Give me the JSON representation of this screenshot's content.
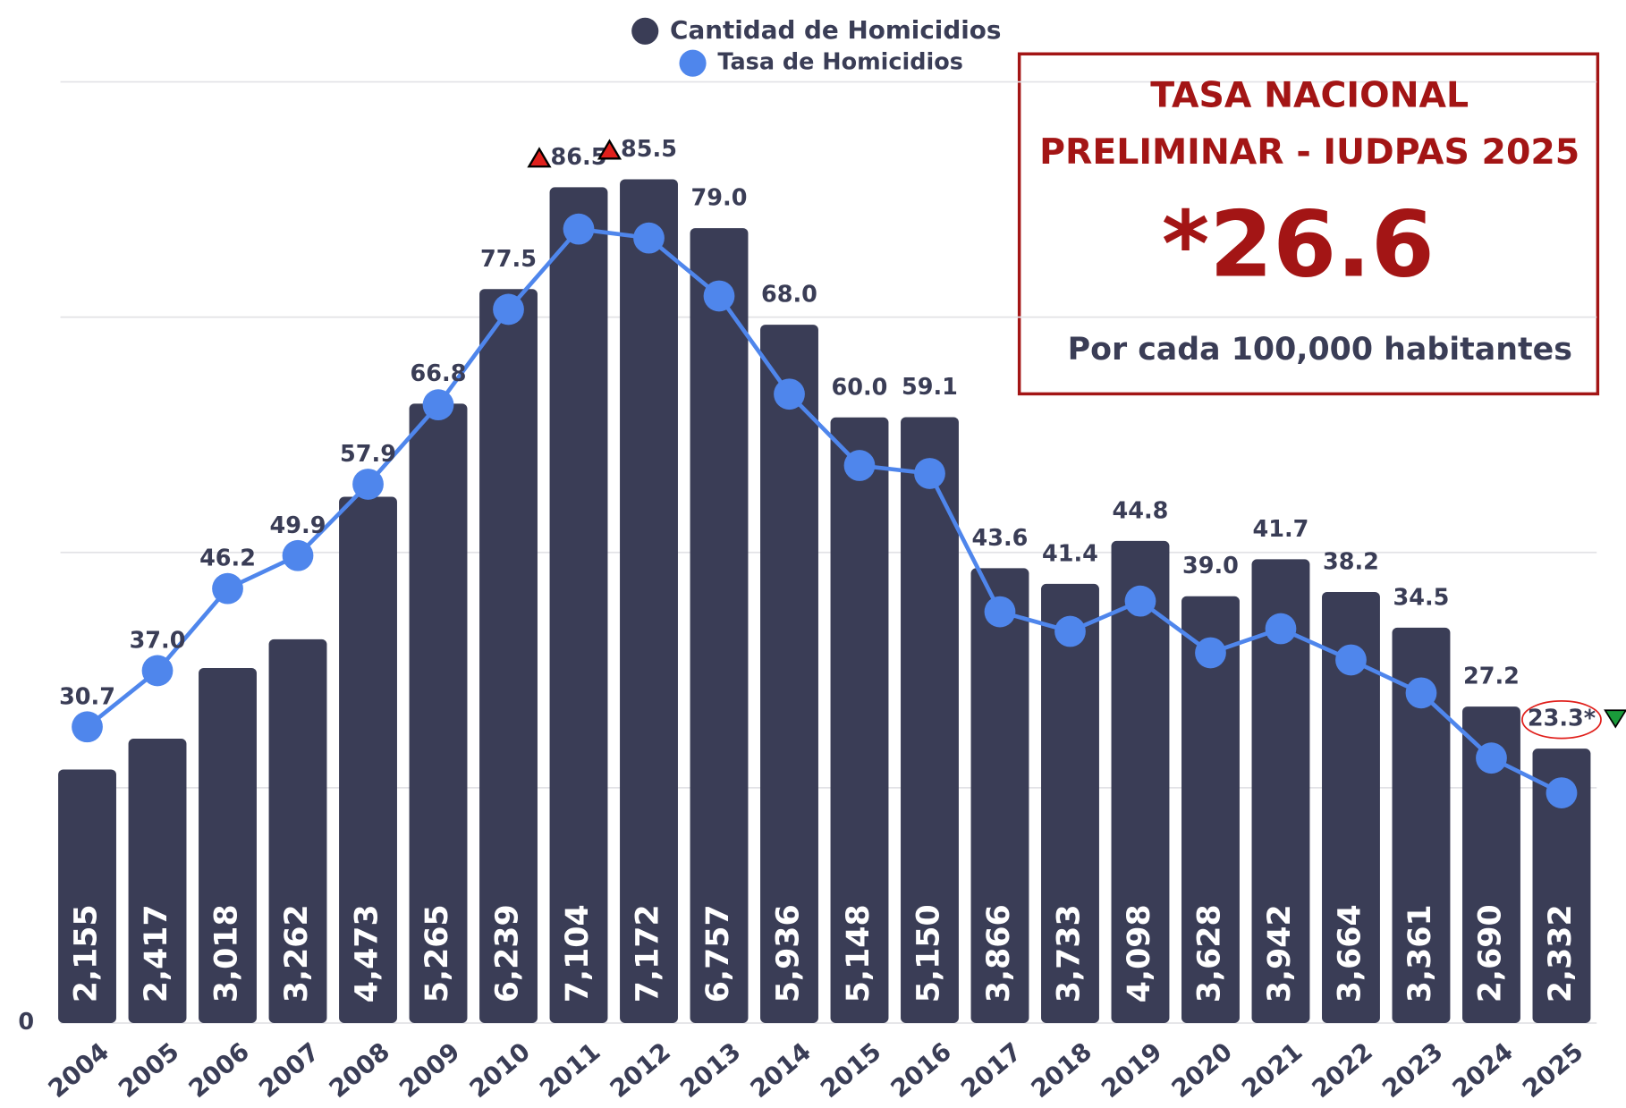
{
  "chart_data": {
    "type": "bar_line",
    "categories": [
      "2004",
      "2005",
      "2006",
      "2007",
      "2008",
      "2009",
      "2010",
      "2011",
      "2012",
      "2013",
      "2014",
      "2015",
      "2016",
      "2017",
      "2018",
      "2019",
      "2020",
      "2021",
      "2022",
      "2023",
      "2024",
      "2025"
    ],
    "series": [
      {
        "name": "Cantidad de Homicidios",
        "color": "#3a3d56",
        "type": "bar",
        "values": [
          2155,
          2417,
          3018,
          3262,
          4473,
          5265,
          6239,
          7104,
          7172,
          6757,
          5936,
          5148,
          5150,
          3866,
          3733,
          4098,
          3628,
          3942,
          3664,
          3361,
          2690,
          2332
        ],
        "value_labels": [
          "2,155",
          "2,417",
          "3,018",
          "3,262",
          "4,473",
          "5,265",
          "6,239",
          "7,104",
          "7,172",
          "6,757",
          "5,936",
          "5,148",
          "5,150",
          "3,866",
          "3,733",
          "4,098",
          "3,628",
          "3,942",
          "3,664",
          "3,361",
          "2,690",
          "2,332"
        ]
      },
      {
        "name": "Tasa de Homicidios",
        "color": "#4f86ec",
        "type": "line",
        "axis": "y2",
        "values": [
          30.7,
          37.0,
          46.2,
          49.9,
          57.9,
          66.8,
          77.5,
          86.5,
          85.5,
          79.0,
          68.0,
          60.0,
          59.1,
          43.6,
          41.4,
          44.8,
          39.0,
          41.7,
          38.2,
          34.5,
          27.2,
          23.3
        ],
        "value_labels": [
          "30.7",
          "37.0",
          "46.2",
          "49.9",
          "57.9",
          "66.8",
          "77.5",
          "86.5",
          "85.5",
          "79.0",
          "68.0",
          "60.0",
          "59.1",
          "43.6",
          "41.4",
          "44.8",
          "39.0",
          "41.7",
          "38.2",
          "34.5",
          "27.2",
          "23.3*"
        ]
      }
    ],
    "ylim": [
      0,
      8000
    ],
    "yticks": [
      0,
      {
        "value": 2000,
        "label": null
      },
      {
        "value": 4000,
        "label": null
      },
      {
        "value": 6000,
        "label": null
      },
      {
        "value": 8000,
        "label": null
      }
    ],
    "y2lim": [
      -2.5,
      103
    ],
    "grid": true,
    "legend": "top",
    "highlights": [
      {
        "index": 7,
        "symbol": "up",
        "color": "#e0201c"
      },
      {
        "index": 8,
        "symbol": "up",
        "color": "#e0201c"
      },
      {
        "index": 21,
        "symbol": "down",
        "color": "#1a9a3a",
        "circled": true
      }
    ],
    "annotation": {
      "lines": [
        "TASA NACIONAL",
        "PRELIMINAR - IUDPAS 2025"
      ],
      "value": "*26.6",
      "note": "Por cada 100,000 habitantes",
      "color": "#a31515"
    }
  }
}
